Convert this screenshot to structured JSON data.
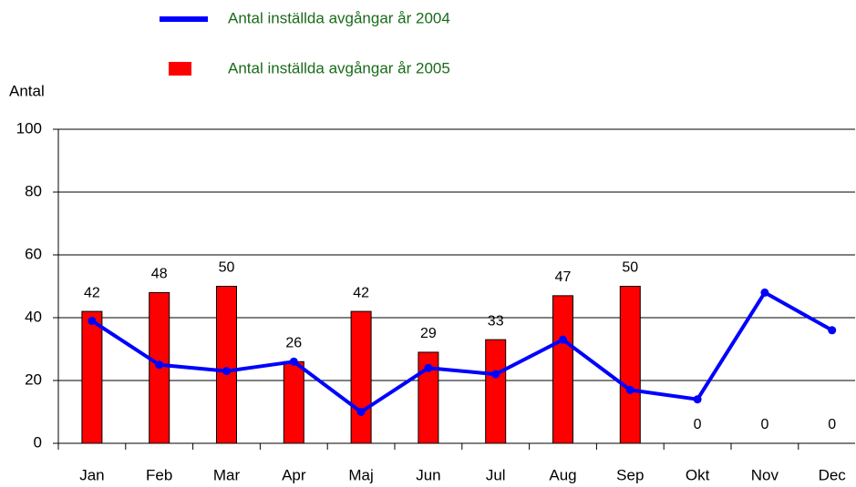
{
  "chart_data": {
    "type": "bar_line",
    "y_label": "Antal",
    "categories": [
      "Jan",
      "Feb",
      "Mar",
      "Apr",
      "Maj",
      "Jun",
      "Jul",
      "Aug",
      "Sep",
      "Okt",
      "Nov",
      "Dec"
    ],
    "series": [
      {
        "name": "Antal inställda avgångar år 2004",
        "type": "line",
        "color": "#0000ff",
        "values": [
          39,
          25,
          23,
          26,
          10,
          24,
          22,
          33,
          17,
          14,
          48,
          36
        ]
      },
      {
        "name": "Antal inställda avgångar år 2005",
        "type": "bar",
        "color": "#ff0000",
        "values": [
          42,
          48,
          50,
          26,
          42,
          29,
          33,
          47,
          50,
          0,
          0,
          0
        ]
      }
    ],
    "ylim": [
      0,
      100
    ],
    "yticks": [
      0,
      20,
      40,
      60,
      80,
      100
    ],
    "grid": true
  }
}
